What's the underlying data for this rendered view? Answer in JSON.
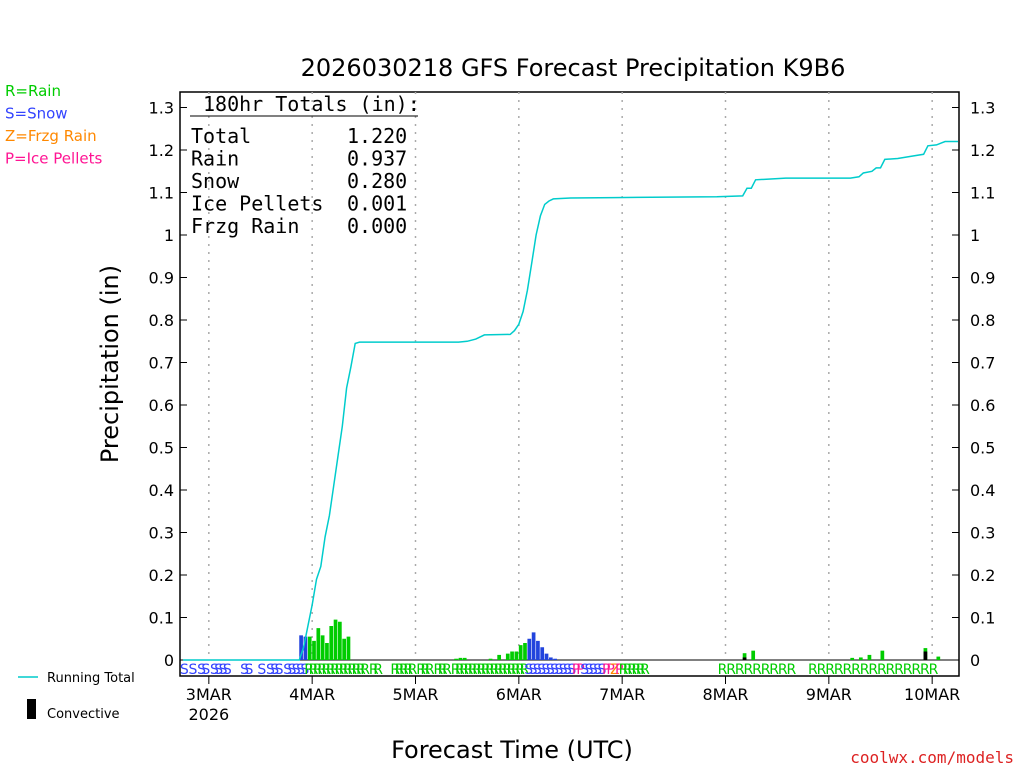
{
  "chart_data": {
    "type": "line+bar",
    "title": "2026030218 GFS Forecast Precipitation K9B6",
    "xlabel": "Forecast Time (UTC)",
    "ylabel": "Precipitation (in)",
    "ylim": [
      0,
      1.33
    ],
    "y_ticks": [
      0,
      0.1,
      0.2,
      0.3,
      0.4,
      0.5,
      0.6,
      0.7,
      0.8,
      0.9,
      1,
      1.1,
      1.2,
      1.3
    ],
    "y_tick_labels": [
      "0",
      "0.1",
      "0.2",
      "0.3",
      "0.4",
      "0.5",
      "0.6",
      "0.7",
      "0.8",
      "0.9",
      "1",
      "1.1",
      "1.2",
      "1.3"
    ],
    "xlim_hours": [
      0,
      180
    ],
    "x_ticks": [
      {
        "label": "3MAR",
        "hour": 6,
        "sub": "2026"
      },
      {
        "label": "4MAR",
        "hour": 30
      },
      {
        "label": "5MAR",
        "hour": 54
      },
      {
        "label": "6MAR",
        "hour": 78
      },
      {
        "label": "7MAR",
        "hour": 102
      },
      {
        "label": "8MAR",
        "hour": 126
      },
      {
        "label": "9MAR",
        "hour": 150
      },
      {
        "label": "10MAR",
        "hour": 174
      }
    ],
    "totals_box": {
      "header": "180hr Totals (in):",
      "rows": [
        {
          "label": "Total",
          "value": "1.220"
        },
        {
          "label": "Rain",
          "value": "0.937"
        },
        {
          "label": "Snow",
          "value": "0.280"
        },
        {
          "label": "Ice Pellets",
          "value": "0.001"
        },
        {
          "label": "Frzg Rain",
          "value": "0.000"
        }
      ]
    },
    "type_legend": [
      {
        "text": "R=Rain",
        "color": "#00cc00"
      },
      {
        "text": "S=Snow",
        "color": "#3344ff"
      },
      {
        "text": "Z=Frzg Rain",
        "color": "#ff8800"
      },
      {
        "text": "P=Ice Pellets",
        "color": "#ff1493"
      }
    ],
    "series_legend": [
      {
        "text": "Running Total",
        "kind": "line",
        "color": "#00cccc"
      },
      {
        "text": "Convective",
        "kind": "bar",
        "color": "#000000"
      }
    ],
    "credit": "coolwx.com/models",
    "running_total": {
      "color": "#00cccc",
      "points": [
        [
          0,
          0
        ],
        [
          27,
          0
        ],
        [
          28,
          0.03
        ],
        [
          29,
          0.08
        ],
        [
          30,
          0.13
        ],
        [
          31,
          0.19
        ],
        [
          32,
          0.22
        ],
        [
          33,
          0.29
        ],
        [
          34,
          0.34
        ],
        [
          35,
          0.41
        ],
        [
          36,
          0.48
        ],
        [
          37,
          0.55
        ],
        [
          38,
          0.64
        ],
        [
          39,
          0.69
        ],
        [
          40,
          0.745
        ],
        [
          41,
          0.748
        ],
        [
          64,
          0.748
        ],
        [
          66,
          0.75
        ],
        [
          68,
          0.755
        ],
        [
          70,
          0.765
        ],
        [
          76,
          0.766
        ],
        [
          77,
          0.775
        ],
        [
          78,
          0.79
        ],
        [
          79,
          0.82
        ],
        [
          80,
          0.87
        ],
        [
          81,
          0.935
        ],
        [
          82,
          1.0
        ],
        [
          83,
          1.045
        ],
        [
          84,
          1.072
        ],
        [
          85,
          1.08
        ],
        [
          86,
          1.085
        ],
        [
          90,
          1.087
        ],
        [
          100,
          1.088
        ],
        [
          124,
          1.09
        ],
        [
          130,
          1.092
        ],
        [
          131,
          1.11
        ],
        [
          132,
          1.11
        ],
        [
          133,
          1.13
        ],
        [
          140,
          1.134
        ],
        [
          155,
          1.134
        ],
        [
          157,
          1.137
        ],
        [
          158,
          1.146
        ],
        [
          160,
          1.15
        ],
        [
          161,
          1.158
        ],
        [
          162,
          1.158
        ],
        [
          163,
          1.178
        ],
        [
          166,
          1.18
        ],
        [
          169,
          1.185
        ],
        [
          172,
          1.19
        ],
        [
          173,
          1.21
        ],
        [
          175,
          1.212
        ],
        [
          176,
          1.216
        ],
        [
          177,
          1.22
        ],
        [
          180,
          1.22
        ]
      ]
    },
    "bars": {
      "interval_hours": 1,
      "series": [
        {
          "name": "Snow",
          "color": "#2244dd",
          "values": [
            [
              28,
              0.058
            ],
            [
              29,
              0.055
            ],
            [
              81,
              0.05
            ],
            [
              82,
              0.065
            ],
            [
              83,
              0.045
            ],
            [
              84,
              0.03
            ],
            [
              85,
              0.015
            ],
            [
              86,
              0.006
            ],
            [
              87,
              0.003
            ]
          ]
        },
        {
          "name": "Rain",
          "color": "#00cc00",
          "values": [
            [
              30,
              0.055
            ],
            [
              31,
              0.045
            ],
            [
              32,
              0.075
            ],
            [
              33,
              0.058
            ],
            [
              34,
              0.04
            ],
            [
              35,
              0.08
            ],
            [
              36,
              0.095
            ],
            [
              37,
              0.09
            ],
            [
              38,
              0.05
            ],
            [
              39,
              0.055
            ],
            [
              64,
              0.003
            ],
            [
              65,
              0.005
            ],
            [
              66,
              0.005
            ],
            [
              72,
              0.003
            ],
            [
              74,
              0.012
            ],
            [
              76,
              0.015
            ],
            [
              77,
              0.02
            ],
            [
              78,
              0.02
            ],
            [
              79,
              0.035
            ],
            [
              80,
              0.04
            ],
            [
              131,
              0.016
            ],
            [
              133,
              0.022
            ],
            [
              156,
              0.005
            ],
            [
              158,
              0.006
            ],
            [
              160,
              0.012
            ],
            [
              163,
              0.022
            ],
            [
              173,
              0.028
            ],
            [
              176,
              0.008
            ]
          ]
        },
        {
          "name": "Convective",
          "color": "#000000",
          "values": [
            [
              131,
              0.006
            ],
            [
              173,
              0.02
            ]
          ]
        }
      ]
    },
    "type_strip": [
      {
        "hour": 1,
        "t": "S"
      },
      {
        "hour": 3,
        "t": "S"
      },
      {
        "hour": 5,
        "t": "S"
      },
      {
        "hour": 6,
        "t": "S"
      },
      {
        "hour": 8,
        "t": "S"
      },
      {
        "hour": 9,
        "t": "S"
      },
      {
        "hour": 10,
        "t": "S"
      },
      {
        "hour": 11,
        "t": "S"
      },
      {
        "hour": 15,
        "t": "S"
      },
      {
        "hour": 16,
        "t": "S"
      },
      {
        "hour": 19,
        "t": "S"
      },
      {
        "hour": 21,
        "t": "S"
      },
      {
        "hour": 22,
        "t": "S"
      },
      {
        "hour": 23,
        "t": "S"
      },
      {
        "hour": 25,
        "t": "S"
      },
      {
        "hour": 26,
        "t": "S"
      },
      {
        "hour": 27,
        "t": "S"
      },
      {
        "hour": 28,
        "t": "S"
      },
      {
        "hour": 29,
        "t": "S"
      },
      {
        "hour": 30,
        "t": "R"
      },
      {
        "hour": 31,
        "t": "R"
      },
      {
        "hour": 32,
        "t": "R"
      },
      {
        "hour": 33,
        "t": "R"
      },
      {
        "hour": 34,
        "t": "R"
      },
      {
        "hour": 35,
        "t": "R"
      },
      {
        "hour": 36,
        "t": "R"
      },
      {
        "hour": 37,
        "t": "R"
      },
      {
        "hour": 38,
        "t": "R"
      },
      {
        "hour": 39,
        "t": "R"
      },
      {
        "hour": 40,
        "t": "R"
      },
      {
        "hour": 41,
        "t": "R"
      },
      {
        "hour": 42,
        "t": "R"
      },
      {
        "hour": 43,
        "t": "R"
      },
      {
        "hour": 45,
        "t": "R"
      },
      {
        "hour": 46,
        "t": "R"
      },
      {
        "hour": 50,
        "t": "R"
      },
      {
        "hour": 51,
        "t": "R"
      },
      {
        "hour": 52,
        "t": "R"
      },
      {
        "hour": 53,
        "t": "R"
      },
      {
        "hour": 54,
        "t": "R"
      },
      {
        "hour": 56,
        "t": "R"
      },
      {
        "hour": 57,
        "t": "R"
      },
      {
        "hour": 58,
        "t": "R"
      },
      {
        "hour": 60,
        "t": "R"
      },
      {
        "hour": 61,
        "t": "R"
      },
      {
        "hour": 62,
        "t": "R"
      },
      {
        "hour": 64,
        "t": "R"
      },
      {
        "hour": 65,
        "t": "R"
      },
      {
        "hour": 66,
        "t": "R"
      },
      {
        "hour": 67,
        "t": "R"
      },
      {
        "hour": 68,
        "t": "R"
      },
      {
        "hour": 69,
        "t": "R"
      },
      {
        "hour": 70,
        "t": "R"
      },
      {
        "hour": 71,
        "t": "R"
      },
      {
        "hour": 72,
        "t": "R"
      },
      {
        "hour": 73,
        "t": "R"
      },
      {
        "hour": 74,
        "t": "R"
      },
      {
        "hour": 75,
        "t": "R"
      },
      {
        "hour": 76,
        "t": "R"
      },
      {
        "hour": 77,
        "t": "R"
      },
      {
        "hour": 78,
        "t": "R"
      },
      {
        "hour": 79,
        "t": "R"
      },
      {
        "hour": 80,
        "t": "R"
      },
      {
        "hour": 81,
        "t": "S"
      },
      {
        "hour": 82,
        "t": "S"
      },
      {
        "hour": 83,
        "t": "S"
      },
      {
        "hour": 84,
        "t": "S"
      },
      {
        "hour": 85,
        "t": "S"
      },
      {
        "hour": 86,
        "t": "S"
      },
      {
        "hour": 87,
        "t": "S"
      },
      {
        "hour": 88,
        "t": "S"
      },
      {
        "hour": 89,
        "t": "S"
      },
      {
        "hour": 90,
        "t": "S"
      },
      {
        "hour": 91,
        "t": "S"
      },
      {
        "hour": 92,
        "t": "P"
      },
      {
        "hour": 93,
        "t": "P"
      },
      {
        "hour": 94,
        "t": "S"
      },
      {
        "hour": 95,
        "t": "S"
      },
      {
        "hour": 96,
        "t": "S"
      },
      {
        "hour": 97,
        "t": "S"
      },
      {
        "hour": 98,
        "t": "S"
      },
      {
        "hour": 99,
        "t": "P"
      },
      {
        "hour": 100,
        "t": "P"
      },
      {
        "hour": 101,
        "t": "Z"
      },
      {
        "hour": 102,
        "t": "P"
      },
      {
        "hour": 103,
        "t": "R"
      },
      {
        "hour": 104,
        "t": "R"
      },
      {
        "hour": 105,
        "t": "R"
      },
      {
        "hour": 106,
        "t": "R"
      },
      {
        "hour": 107,
        "t": "R"
      },
      {
        "hour": 108,
        "t": "R"
      },
      {
        "hour": 126,
        "t": "R"
      },
      {
        "hour": 128,
        "t": "R"
      },
      {
        "hour": 130,
        "t": "R"
      },
      {
        "hour": 132,
        "t": "R"
      },
      {
        "hour": 134,
        "t": "R"
      },
      {
        "hour": 136,
        "t": "R"
      },
      {
        "hour": 138,
        "t": "R"
      },
      {
        "hour": 140,
        "t": "R"
      },
      {
        "hour": 142,
        "t": "R"
      },
      {
        "hour": 147,
        "t": "R"
      },
      {
        "hour": 149,
        "t": "R"
      },
      {
        "hour": 151,
        "t": "R"
      },
      {
        "hour": 153,
        "t": "R"
      },
      {
        "hour": 155,
        "t": "R"
      },
      {
        "hour": 157,
        "t": "R"
      },
      {
        "hour": 159,
        "t": "R"
      },
      {
        "hour": 161,
        "t": "R"
      },
      {
        "hour": 163,
        "t": "R"
      },
      {
        "hour": 165,
        "t": "R"
      },
      {
        "hour": 167,
        "t": "R"
      },
      {
        "hour": 169,
        "t": "R"
      },
      {
        "hour": 171,
        "t": "R"
      },
      {
        "hour": 173,
        "t": "R"
      },
      {
        "hour": 175,
        "t": "R"
      }
    ]
  }
}
